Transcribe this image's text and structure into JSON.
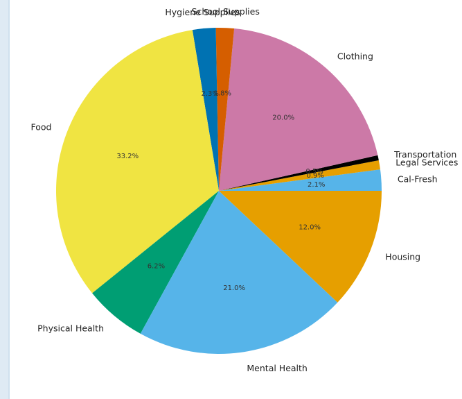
{
  "chart_data": {
    "type": "pie",
    "title": "",
    "start_angle_deg": 0,
    "direction": "counterclockwise",
    "slices": [
      {
        "label": "Cal-Fresh",
        "value": 2.1,
        "pct_label": "2.1%",
        "color": "#56b4e9"
      },
      {
        "label": "Legal Services",
        "value": 0.9,
        "pct_label": "0.9%",
        "color": "#e69f00"
      },
      {
        "label": "Transportation",
        "value": 0.5,
        "pct_label": "0.5%",
        "color": "#000000"
      },
      {
        "label": "Clothing",
        "value": 20.0,
        "pct_label": "20.0%",
        "color": "#cc79a7"
      },
      {
        "label": "School Supplies",
        "value": 1.8,
        "pct_label": "1.8%",
        "color": "#d55e00"
      },
      {
        "label": "Hygiene Supplies",
        "value": 2.3,
        "pct_label": "2.3%",
        "color": "#0072b2"
      },
      {
        "label": "Food",
        "value": 33.2,
        "pct_label": "33.2%",
        "color": "#f0e442"
      },
      {
        "label": "Physical Health",
        "value": 6.2,
        "pct_label": "6.2%",
        "color": "#009e73"
      },
      {
        "label": "Mental Health",
        "value": 21.0,
        "pct_label": "21.0%",
        "color": "#56b4e9"
      },
      {
        "label": "Housing",
        "value": 12.0,
        "pct_label": "12.0%",
        "color": "#e69f00"
      }
    ]
  }
}
